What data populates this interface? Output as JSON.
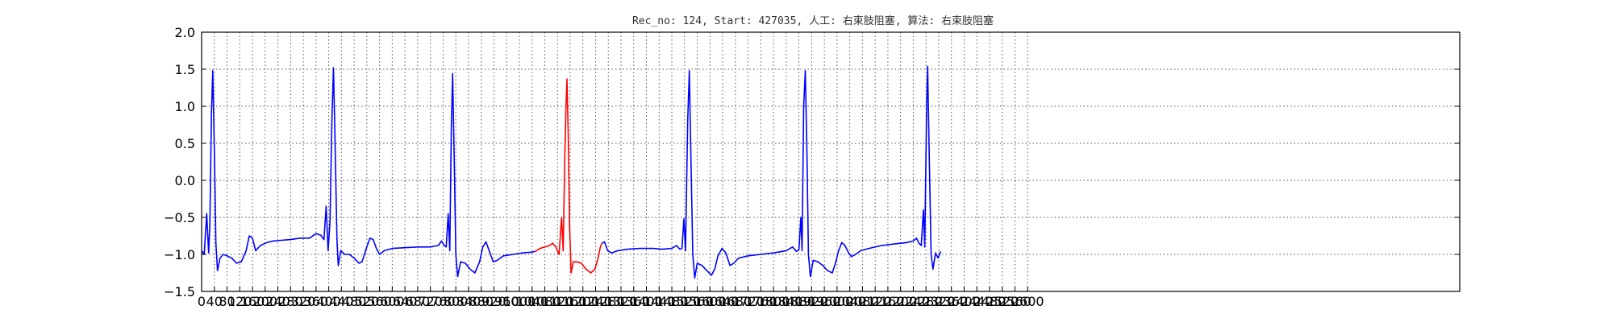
{
  "chart_data": {
    "type": "line",
    "title": "Rec_no: 124, Start: 427035, 人工: 右束肢阻塞, 算法: 右束肢阻塞",
    "xlabel": "",
    "ylabel": "",
    "xlim": [
      0,
      3960
    ],
    "ylim": [
      -1.5,
      2.0
    ],
    "grid": true,
    "x_ticks": [
      0,
      40,
      80,
      120,
      160,
      200,
      240,
      280,
      320,
      360,
      400,
      440,
      480,
      520,
      560,
      600,
      640,
      680,
      720,
      760,
      800,
      840,
      880,
      920,
      960,
      1000,
      1040,
      1080,
      1120,
      1160,
      1200,
      1240,
      1280,
      1320,
      1360,
      1400,
      1440,
      1480,
      1520,
      1560,
      1600,
      1640,
      1680,
      1720,
      1760,
      1800,
      1840,
      1880,
      1920,
      1960,
      2000,
      2040,
      2080,
      2120,
      2160,
      2200,
      2240,
      2280,
      2320,
      2360,
      2400,
      2440,
      2480,
      2520,
      2560,
      2600
    ],
    "y_ticks": [
      "2.0",
      "1.5",
      "1.0",
      "0.5",
      "0.0",
      "−0.5",
      "−1.0",
      "−1.5"
    ],
    "y_tick_values": [
      2.0,
      1.5,
      1.0,
      0.5,
      0.0,
      -0.5,
      -1.0,
      -1.5
    ],
    "beats_x": [
      35,
      415,
      790,
      1150,
      1535,
      1895,
      2280
    ],
    "highlight_range": [
      1050,
      1260
    ],
    "series": [
      {
        "color": "#0000ff",
        "points": [
          [
            0,
            -0.95
          ],
          [
            8,
            -1.0
          ],
          [
            16,
            -0.45
          ],
          [
            22,
            -0.98
          ],
          [
            26,
            -0.6
          ],
          [
            31,
            0.9
          ],
          [
            35,
            1.48
          ],
          [
            40,
            0.4
          ],
          [
            45,
            -0.85
          ],
          [
            50,
            -1.22
          ],
          [
            58,
            -1.05
          ],
          [
            68,
            -1.0
          ],
          [
            80,
            -1.02
          ],
          [
            95,
            -1.05
          ],
          [
            110,
            -1.12
          ],
          [
            125,
            -1.1
          ],
          [
            140,
            -0.95
          ],
          [
            150,
            -0.75
          ],
          [
            160,
            -0.78
          ],
          [
            170,
            -0.95
          ],
          [
            185,
            -0.88
          ],
          [
            205,
            -0.84
          ],
          [
            225,
            -0.82
          ],
          [
            250,
            -0.81
          ],
          [
            280,
            -0.8
          ],
          [
            310,
            -0.78
          ],
          [
            340,
            -0.78
          ],
          [
            360,
            -0.72
          ],
          [
            375,
            -0.74
          ],
          [
            385,
            -0.8
          ],
          [
            392,
            -0.35
          ],
          [
            398,
            -0.95
          ],
          [
            404,
            -0.55
          ],
          [
            410,
            0.8
          ],
          [
            415,
            1.52
          ],
          [
            420,
            0.5
          ],
          [
            426,
            -0.8
          ],
          [
            430,
            -1.15
          ],
          [
            438,
            -0.95
          ],
          [
            450,
            -1.0
          ],
          [
            465,
            -1.0
          ],
          [
            480,
            -1.05
          ],
          [
            495,
            -1.12
          ],
          [
            505,
            -1.1
          ],
          [
            520,
            -0.9
          ],
          [
            530,
            -0.78
          ],
          [
            540,
            -0.8
          ],
          [
            550,
            -0.92
          ],
          [
            560,
            -1.0
          ],
          [
            575,
            -0.95
          ],
          [
            600,
            -0.92
          ],
          [
            640,
            -0.91
          ],
          [
            680,
            -0.9
          ],
          [
            720,
            -0.9
          ],
          [
            745,
            -0.88
          ],
          [
            755,
            -0.82
          ],
          [
            762,
            -0.87
          ],
          [
            770,
            -0.9
          ],
          [
            776,
            -0.45
          ],
          [
            781,
            -0.95
          ],
          [
            786,
            0.7
          ],
          [
            790,
            1.44
          ],
          [
            795,
            0.3
          ],
          [
            800,
            -1.0
          ],
          [
            806,
            -1.3
          ],
          [
            815,
            -1.1
          ],
          [
            830,
            -1.12
          ],
          [
            845,
            -1.2
          ],
          [
            860,
            -1.25
          ],
          [
            875,
            -1.1
          ],
          [
            885,
            -0.9
          ],
          [
            895,
            -0.83
          ],
          [
            905,
            -0.95
          ],
          [
            918,
            -1.1
          ],
          [
            930,
            -1.08
          ],
          [
            950,
            -1.02
          ],
          [
            980,
            -1.0
          ],
          [
            1010,
            -0.98
          ],
          [
            1040,
            -0.97
          ],
          [
            1050,
            -0.96
          ]
        ]
      },
      {
        "color": "#ff0000",
        "points": [
          [
            1050,
            -0.96
          ],
          [
            1065,
            -0.92
          ],
          [
            1080,
            -0.9
          ],
          [
            1095,
            -0.88
          ],
          [
            1105,
            -0.85
          ],
          [
            1115,
            -0.9
          ],
          [
            1125,
            -1.0
          ],
          [
            1133,
            -0.5
          ],
          [
            1138,
            -0.95
          ],
          [
            1143,
            0.3
          ],
          [
            1147,
            1.0
          ],
          [
            1150,
            1.37
          ],
          [
            1154,
            0.6
          ],
          [
            1158,
            -0.6
          ],
          [
            1163,
            -1.25
          ],
          [
            1170,
            -1.1
          ],
          [
            1180,
            -1.1
          ],
          [
            1195,
            -1.12
          ],
          [
            1210,
            -1.2
          ],
          [
            1225,
            -1.25
          ],
          [
            1238,
            -1.2
          ],
          [
            1248,
            -1.05
          ],
          [
            1255,
            -0.9
          ],
          [
            1260,
            -0.85
          ]
        ]
      },
      {
        "color": "#0000ff",
        "points": [
          [
            1260,
            -0.85
          ],
          [
            1268,
            -0.83
          ],
          [
            1278,
            -0.95
          ],
          [
            1290,
            -0.98
          ],
          [
            1310,
            -0.95
          ],
          [
            1340,
            -0.93
          ],
          [
            1380,
            -0.92
          ],
          [
            1420,
            -0.92
          ],
          [
            1450,
            -0.93
          ],
          [
            1480,
            -0.92
          ],
          [
            1495,
            -0.88
          ],
          [
            1505,
            -0.93
          ],
          [
            1512,
            -0.92
          ],
          [
            1518,
            -0.52
          ],
          [
            1523,
            -0.95
          ],
          [
            1530,
            0.8
          ],
          [
            1535,
            1.48
          ],
          [
            1540,
            0.3
          ],
          [
            1546,
            -1.0
          ],
          [
            1552,
            -1.32
          ],
          [
            1560,
            -1.12
          ],
          [
            1575,
            -1.15
          ],
          [
            1590,
            -1.22
          ],
          [
            1605,
            -1.28
          ],
          [
            1615,
            -1.2
          ],
          [
            1625,
            -1.02
          ],
          [
            1638,
            -0.92
          ],
          [
            1650,
            -0.98
          ],
          [
            1663,
            -1.15
          ],
          [
            1675,
            -1.12
          ],
          [
            1690,
            -1.05
          ],
          [
            1720,
            -1.02
          ],
          [
            1760,
            -1.0
          ],
          [
            1800,
            -0.98
          ],
          [
            1840,
            -0.95
          ],
          [
            1860,
            -0.9
          ],
          [
            1872,
            -0.96
          ],
          [
            1880,
            -0.94
          ],
          [
            1886,
            -0.5
          ],
          [
            1890,
            -0.95
          ],
          [
            1895,
            1.0
          ],
          [
            1900,
            1.48
          ],
          [
            1905,
            0.4
          ],
          [
            1910,
            -1.0
          ],
          [
            1916,
            -1.3
          ],
          [
            1925,
            -1.08
          ],
          [
            1940,
            -1.1
          ],
          [
            1955,
            -1.15
          ],
          [
            1970,
            -1.22
          ],
          [
            1985,
            -1.25
          ],
          [
            1995,
            -1.12
          ],
          [
            2005,
            -0.95
          ],
          [
            2015,
            -0.84
          ],
          [
            2025,
            -0.88
          ],
          [
            2035,
            -0.97
          ],
          [
            2045,
            -1.03
          ],
          [
            2058,
            -1.0
          ],
          [
            2075,
            -0.95
          ],
          [
            2100,
            -0.92
          ],
          [
            2140,
            -0.88
          ],
          [
            2180,
            -0.86
          ],
          [
            2220,
            -0.84
          ],
          [
            2240,
            -0.82
          ],
          [
            2250,
            -0.78
          ],
          [
            2258,
            -0.85
          ],
          [
            2265,
            -0.88
          ],
          [
            2272,
            -0.4
          ],
          [
            2276,
            -0.9
          ],
          [
            2282,
            1.0
          ],
          [
            2285,
            1.54
          ],
          [
            2290,
            0.4
          ],
          [
            2296,
            -1.0
          ],
          [
            2302,
            -1.2
          ],
          [
            2310,
            -0.98
          ],
          [
            2318,
            -1.05
          ],
          [
            2326,
            -0.96
          ]
        ]
      }
    ]
  }
}
